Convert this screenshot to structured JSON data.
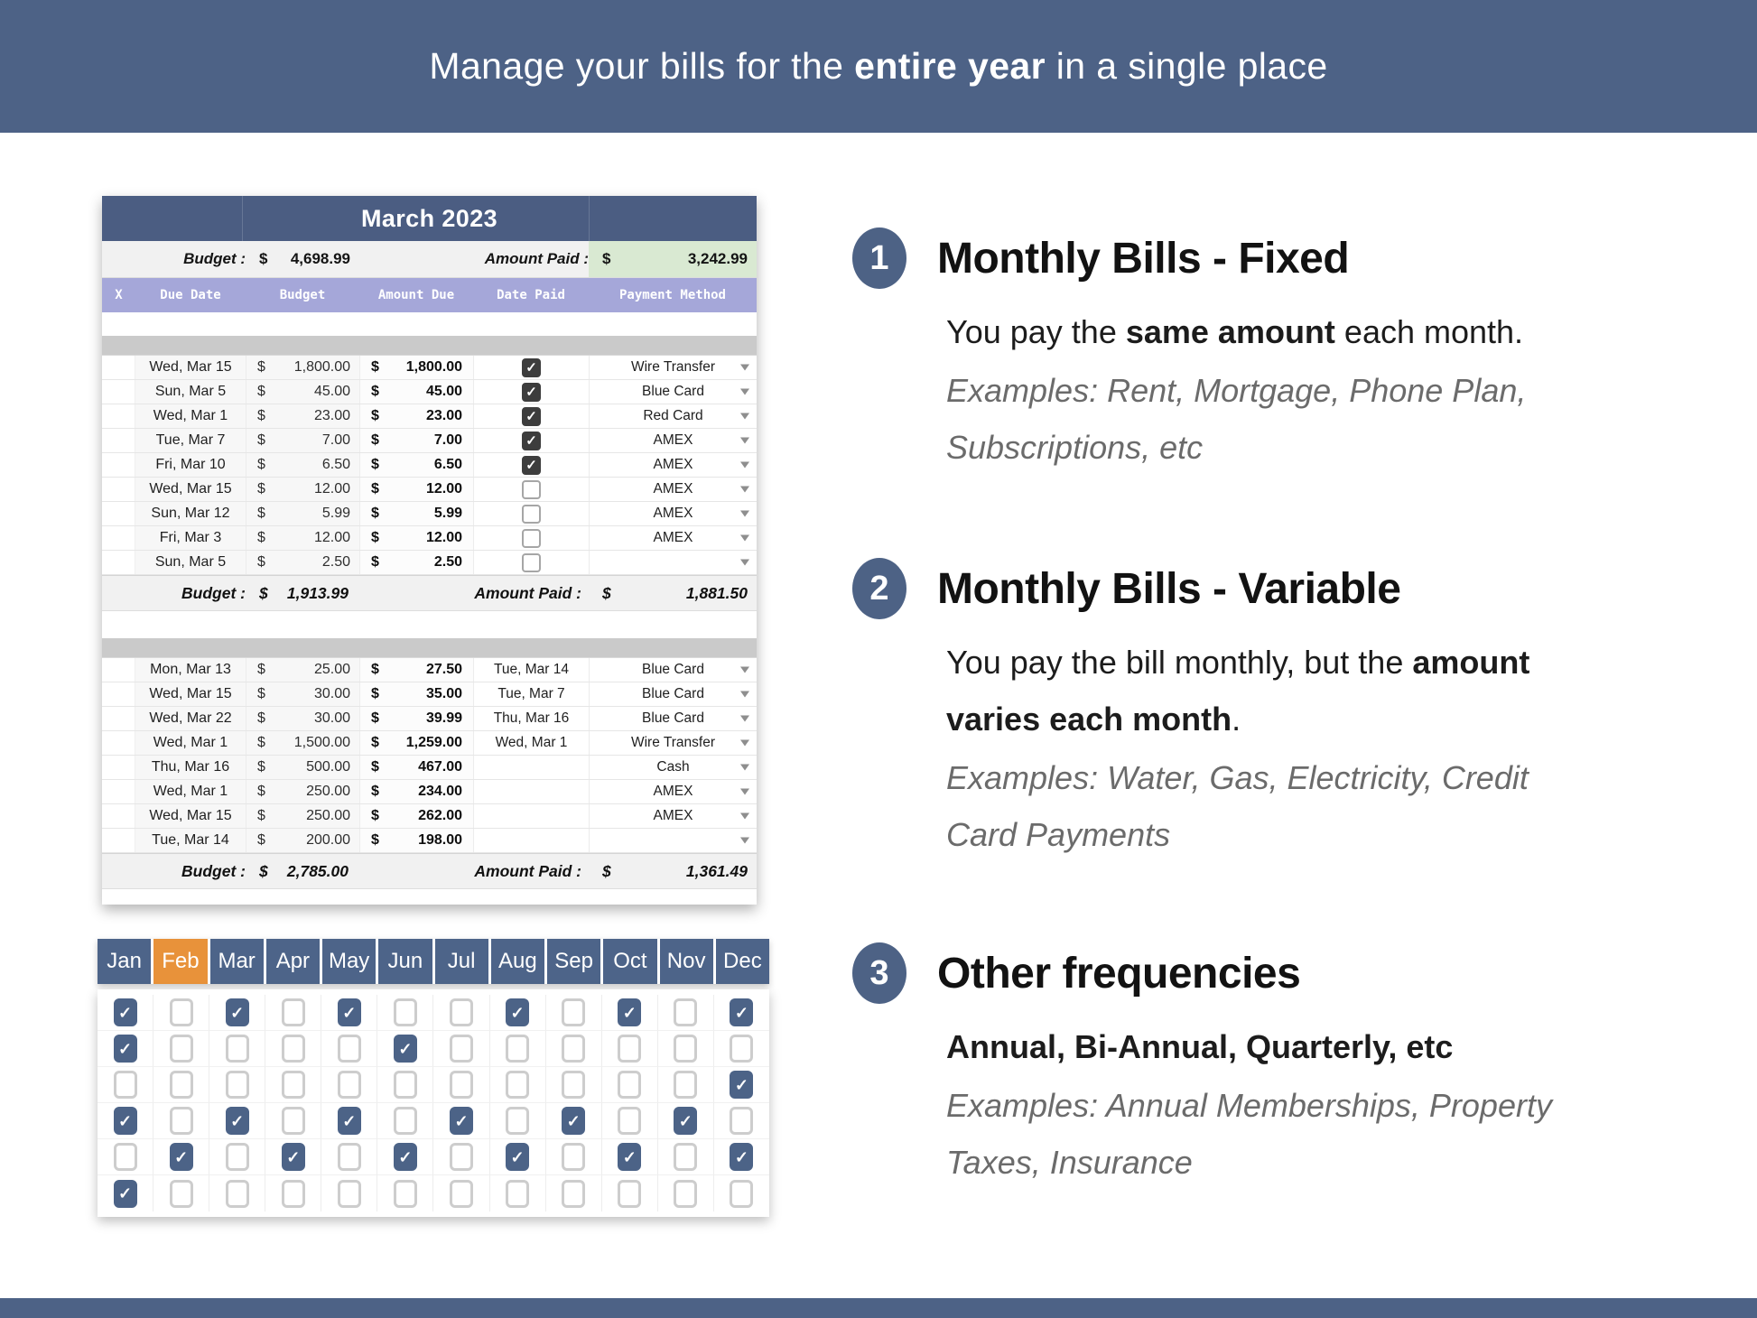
{
  "banner": {
    "text": "Manage your bills for the **entire year** in a single place"
  },
  "colors": {
    "banner_blue": "#4d6286",
    "sheet_header_blue": "#4b5d82",
    "column_header_purple": "#a5a7d9",
    "paid_green": "#d9e9d2",
    "active_tab_orange": "#e8923a",
    "tab_blue": "#4d6489",
    "checked_box_charcoal": "#3d3d3d",
    "checked_box_blue": "#4c6387"
  },
  "sheet": {
    "title": "March 2023",
    "columns": [
      "X",
      "Due Date",
      "Budget",
      "Amount Due",
      "Date Paid",
      "Payment Method"
    ],
    "summary": {
      "budget_label": "Budget :",
      "currency": "$",
      "budget_value": "4,698.99",
      "paid_label": "Amount Paid :",
      "paid_value": "3,242.99"
    },
    "fixed_section": {
      "rows": [
        {
          "due_date": "Wed, Mar 15",
          "budget": "1,800.00",
          "amount_due": "1,800.00",
          "paid": true,
          "method": "Wire Transfer"
        },
        {
          "due_date": "Sun, Mar 5",
          "budget": "45.00",
          "amount_due": "45.00",
          "paid": true,
          "method": "Blue Card"
        },
        {
          "due_date": "Wed, Mar 1",
          "budget": "23.00",
          "amount_due": "23.00",
          "paid": true,
          "method": "Red Card"
        },
        {
          "due_date": "Tue, Mar 7",
          "budget": "7.00",
          "amount_due": "7.00",
          "paid": true,
          "method": "AMEX"
        },
        {
          "due_date": "Fri, Mar 10",
          "budget": "6.50",
          "amount_due": "6.50",
          "paid": true,
          "method": "AMEX"
        },
        {
          "due_date": "Wed, Mar 15",
          "budget": "12.00",
          "amount_due": "12.00",
          "paid": false,
          "method": "AMEX"
        },
        {
          "due_date": "Sun, Mar 12",
          "budget": "5.99",
          "amount_due": "5.99",
          "paid": false,
          "method": "AMEX"
        },
        {
          "due_date": "Fri, Mar 3",
          "budget": "12.00",
          "amount_due": "12.00",
          "paid": false,
          "method": "AMEX"
        },
        {
          "due_date": "Sun, Mar 5",
          "budget": "2.50",
          "amount_due": "2.50",
          "paid": false,
          "method": ""
        }
      ],
      "totals": {
        "budget_label": "Budget :",
        "currency": "$",
        "budget": "1,913.99",
        "paid_label": "Amount Paid :",
        "paid": "1,881.50"
      }
    },
    "variable_section": {
      "rows": [
        {
          "due_date": "Mon, Mar 13",
          "budget": "25.00",
          "amount_due": "27.50",
          "date_paid": "Tue, Mar 14",
          "method": "Blue Card"
        },
        {
          "due_date": "Wed, Mar 15",
          "budget": "30.00",
          "amount_due": "35.00",
          "date_paid": "Tue, Mar 7",
          "method": "Blue Card"
        },
        {
          "due_date": "Wed, Mar 22",
          "budget": "30.00",
          "amount_due": "39.99",
          "date_paid": "Thu, Mar 16",
          "method": "Blue Card"
        },
        {
          "due_date": "Wed, Mar 1",
          "budget": "1,500.00",
          "amount_due": "1,259.00",
          "date_paid": "Wed, Mar 1",
          "method": "Wire Transfer"
        },
        {
          "due_date": "Thu, Mar 16",
          "budget": "500.00",
          "amount_due": "467.00",
          "date_paid": "",
          "method": "Cash"
        },
        {
          "due_date": "Wed, Mar 1",
          "budget": "250.00",
          "amount_due": "234.00",
          "date_paid": "",
          "method": "AMEX"
        },
        {
          "due_date": "Wed, Mar 15",
          "budget": "250.00",
          "amount_due": "262.00",
          "date_paid": "",
          "method": "AMEX"
        },
        {
          "due_date": "Tue, Mar 14",
          "budget": "200.00",
          "amount_due": "198.00",
          "date_paid": "",
          "method": ""
        }
      ],
      "totals": {
        "budget_label": "Budget :",
        "currency": "$",
        "budget": "2,785.00",
        "paid_label": "Amount Paid :",
        "paid": "1,361.49"
      }
    }
  },
  "calendar": {
    "months": [
      "Jan",
      "Feb",
      "Mar",
      "Apr",
      "May",
      "Jun",
      "Jul",
      "Aug",
      "Sep",
      "Oct",
      "Nov",
      "Dec"
    ],
    "active_month": "Feb",
    "grid": [
      [
        1,
        0,
        1,
        0,
        1,
        0,
        0,
        1,
        0,
        1,
        0,
        1
      ],
      [
        1,
        0,
        0,
        0,
        0,
        1,
        0,
        0,
        0,
        0,
        0,
        0
      ],
      [
        0,
        0,
        0,
        0,
        0,
        0,
        0,
        0,
        0,
        0,
        0,
        1
      ],
      [
        1,
        0,
        1,
        0,
        1,
        0,
        1,
        0,
        1,
        0,
        1,
        0
      ],
      [
        0,
        1,
        0,
        1,
        0,
        1,
        0,
        1,
        0,
        1,
        0,
        1
      ],
      [
        1,
        0,
        0,
        0,
        0,
        0,
        0,
        0,
        0,
        0,
        0,
        0
      ]
    ]
  },
  "sections": [
    {
      "number": "1",
      "title": "Monthly Bills - Fixed",
      "body": "You pay the **same amount** each month.",
      "examples": "Examples: Rent, Mortgage, Phone Plan,\nSubscriptions, etc"
    },
    {
      "number": "2",
      "title": "Monthly Bills - Variable",
      "body": "You pay the bill monthly, but the **amount\nvaries each month**.",
      "examples": "Examples: Water, Gas, Electricity, Credit\nCard Payments"
    },
    {
      "number": "3",
      "title": "Other frequencies",
      "body": "**Annual, Bi-Annual, Quarterly, etc**",
      "examples": "Examples: Annual Memberships, Property\nTaxes, Insurance"
    }
  ]
}
